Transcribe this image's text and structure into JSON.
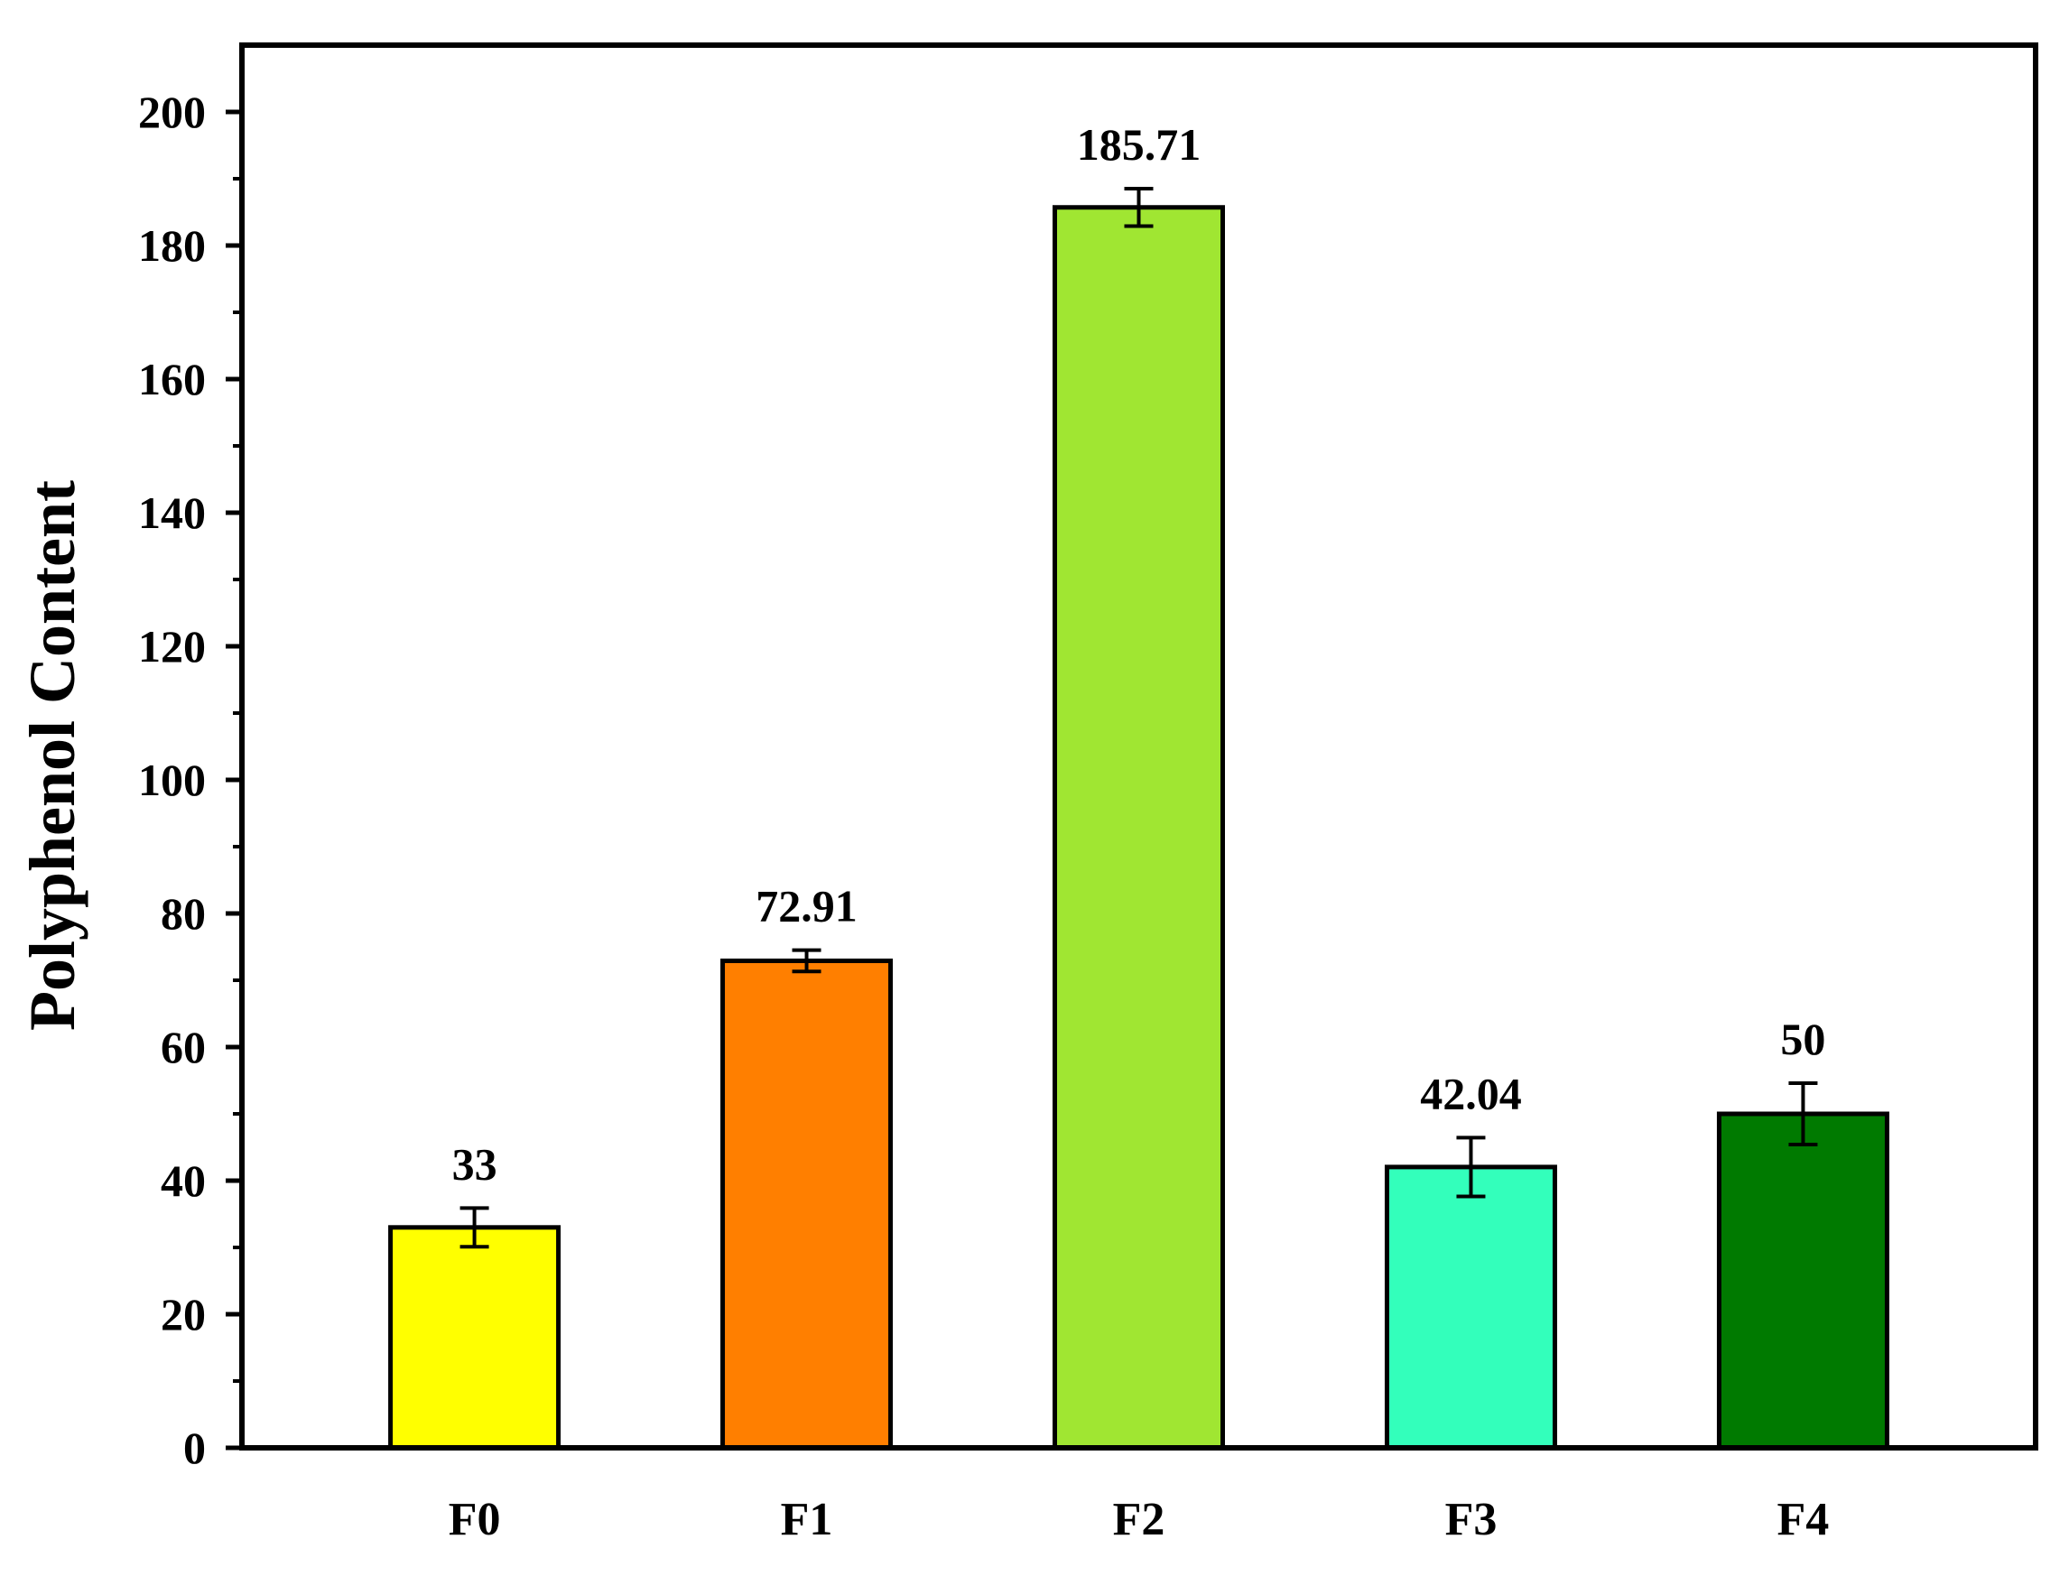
{
  "chart_data": {
    "type": "bar",
    "title": "",
    "xlabel": "",
    "ylabel": "Polyphenol Content",
    "ylim": [
      0,
      210
    ],
    "yticks": [
      0,
      20,
      40,
      60,
      80,
      100,
      120,
      140,
      160,
      180,
      200
    ],
    "yticks_labels": [
      "0",
      "20",
      "40",
      "60",
      "80",
      "100",
      "120",
      "140",
      "160",
      "180",
      "200"
    ],
    "categories": [
      "F0",
      "F1",
      "F2",
      "F3",
      "F4"
    ],
    "values": [
      33,
      72.91,
      185.71,
      42.04,
      50
    ],
    "value_labels": [
      "33",
      "72.91",
      "185.71",
      "42.04",
      "50"
    ],
    "errors": [
      2.9,
      1.6,
      2.8,
      4.4,
      4.6
    ],
    "colors": [
      "#FFFF00",
      "#FF7F00",
      "#A0E632",
      "#33FFBB",
      "#007A00"
    ],
    "grid": false,
    "legend": "none"
  }
}
